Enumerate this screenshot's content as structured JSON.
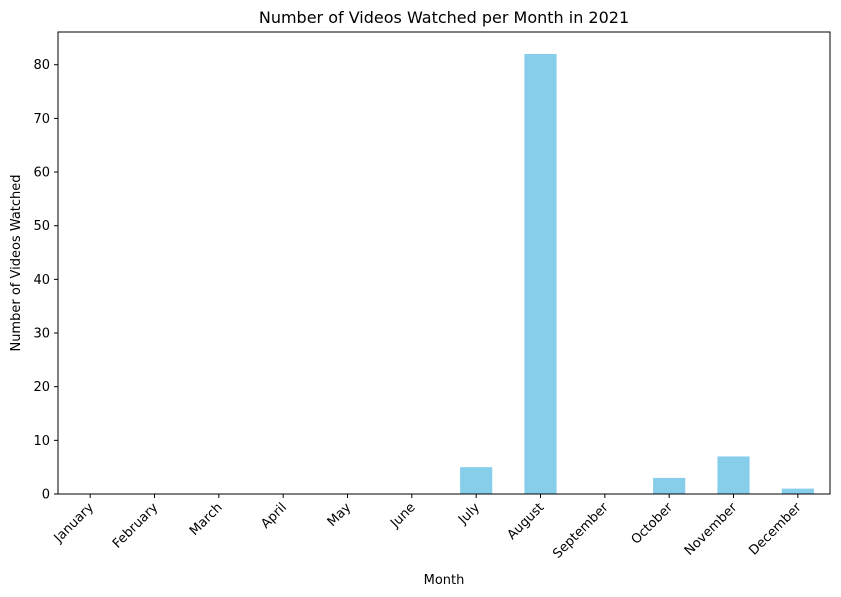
{
  "chart_data": {
    "type": "bar",
    "title": "Number of Videos Watched per Month in 2021",
    "xlabel": "Month",
    "ylabel": "Number of Videos Watched",
    "categories": [
      "January",
      "February",
      "March",
      "April",
      "May",
      "June",
      "July",
      "August",
      "September",
      "October",
      "November",
      "December"
    ],
    "values": [
      0,
      0,
      0,
      0,
      0,
      0,
      5,
      82,
      0,
      3,
      7,
      1
    ],
    "ylim": [
      0,
      86.1
    ],
    "yticks": [
      0,
      10,
      20,
      30,
      40,
      50,
      60,
      70,
      80
    ],
    "grid": false,
    "legend": false,
    "bar_color": "#87ceeb"
  }
}
